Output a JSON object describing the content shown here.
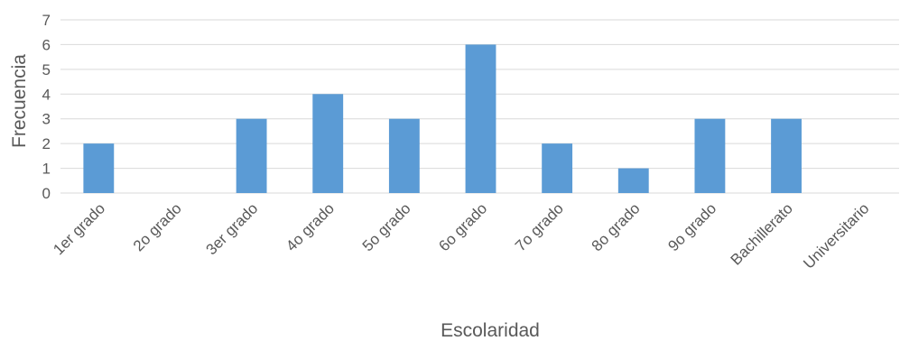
{
  "chart_data": {
    "type": "bar",
    "categories": [
      "1er grado",
      "2o grado",
      "3er grado",
      "4o grado",
      "5o grado",
      "6o grado",
      "7o grado",
      "8o grado",
      "9o grado",
      "Bachillerato",
      "Universitario"
    ],
    "values": [
      2,
      0,
      3,
      4,
      3,
      6,
      2,
      1,
      3,
      3,
      0
    ],
    "title": "",
    "xlabel": "Escolaridad",
    "ylabel": "Frecuencia",
    "ylim": [
      0,
      7
    ],
    "yticks": [
      "0",
      "1",
      "2",
      "3",
      "4",
      "5",
      "6",
      "7"
    ],
    "grid": true,
    "bar_color": "#5b9bd5",
    "grid_color": "#d9d9d9",
    "text_color": "#595959"
  }
}
